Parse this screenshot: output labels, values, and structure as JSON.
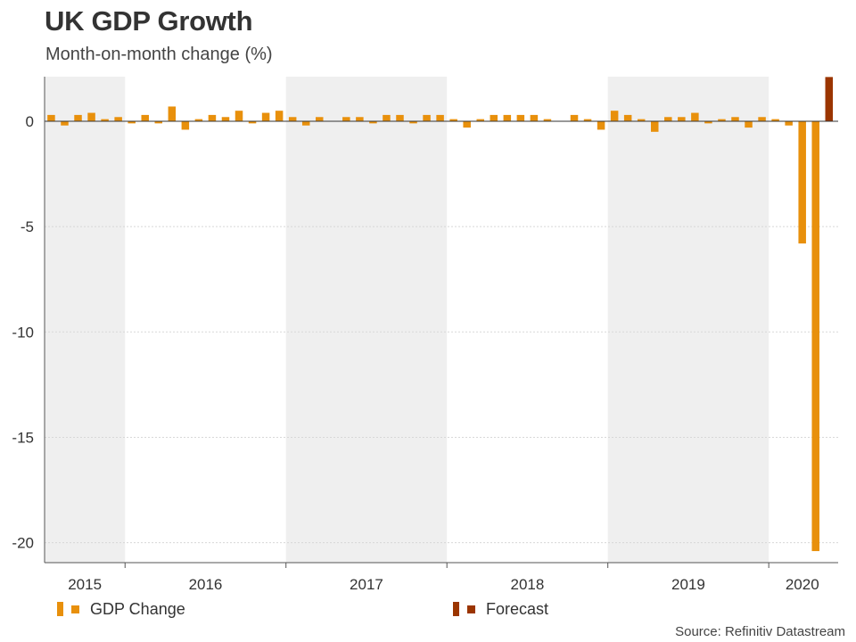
{
  "header": {
    "title": "UK GDP Growth",
    "subtitle": "Month-on-month change (%)"
  },
  "legend": {
    "gdp_label": "GDP Change",
    "forecast_label": "Forecast"
  },
  "source": "Source: Refinitiv Datastream",
  "colors": {
    "gdp": "#E8900C",
    "forecast": "#9B3500",
    "band": "#EFEFEF",
    "axis": "#555555",
    "grid": "#D8D8D8"
  },
  "chart_data": {
    "type": "bar",
    "title": "UK GDP Growth",
    "ylabel": "Month-on-month change (%)",
    "ylim": [
      -21,
      2
    ],
    "yticks": [
      0,
      -5,
      -10,
      -15,
      -20
    ],
    "ytick_labels": [
      "0",
      "-5",
      "-10",
      "-15",
      "-20"
    ],
    "years": [
      "2015",
      "2016",
      "2017",
      "2018",
      "2019",
      "2020"
    ],
    "months_per_year": [
      6,
      12,
      12,
      12,
      12,
      5
    ],
    "series": [
      {
        "name": "GDP Change",
        "values": [
          0.3,
          -0.2,
          0.3,
          0.4,
          0.1,
          0.2,
          -0.1,
          0.3,
          -0.1,
          0.7,
          -0.4,
          0.1,
          0.3,
          0.2,
          0.5,
          -0.1,
          0.4,
          0.5,
          0.2,
          -0.2,
          0.2,
          0.0,
          0.2,
          0.2,
          -0.1,
          0.3,
          0.3,
          -0.1,
          0.3,
          0.3,
          0.1,
          -0.3,
          0.1,
          0.3,
          0.3,
          0.3,
          0.3,
          0.1,
          0.0,
          0.3,
          0.1,
          -0.4,
          0.5,
          0.3,
          0.1,
          -0.5,
          0.2,
          0.2,
          0.4,
          -0.1,
          0.1,
          0.2,
          -0.3,
          0.2,
          0.1,
          -0.2,
          -5.8,
          -20.4,
          null
        ]
      },
      {
        "name": "Forecast",
        "values": [
          null,
          null,
          null,
          null,
          null,
          null,
          null,
          null,
          null,
          null,
          null,
          null,
          null,
          null,
          null,
          null,
          null,
          null,
          null,
          null,
          null,
          null,
          null,
          null,
          null,
          null,
          null,
          null,
          null,
          null,
          null,
          null,
          null,
          null,
          null,
          null,
          null,
          null,
          null,
          null,
          null,
          null,
          null,
          null,
          null,
          null,
          null,
          null,
          null,
          null,
          null,
          null,
          null,
          null,
          null,
          null,
          null,
          null,
          2.1
        ]
      }
    ]
  }
}
